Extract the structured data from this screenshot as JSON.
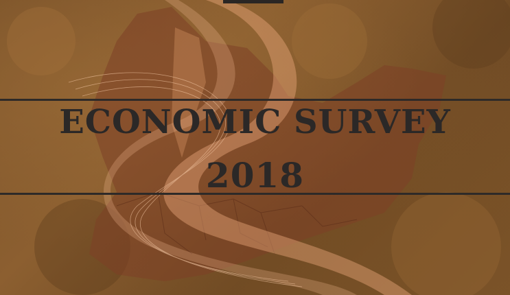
{
  "cover": {
    "title": "ECONOMIC SURVEY",
    "year": "2018"
  },
  "colors": {
    "background": "#7a5229",
    "text": "#2b2827",
    "rules": "#2e2a28",
    "map_fill": "#8a4a2c",
    "ribbon": "#e8a77a"
  }
}
